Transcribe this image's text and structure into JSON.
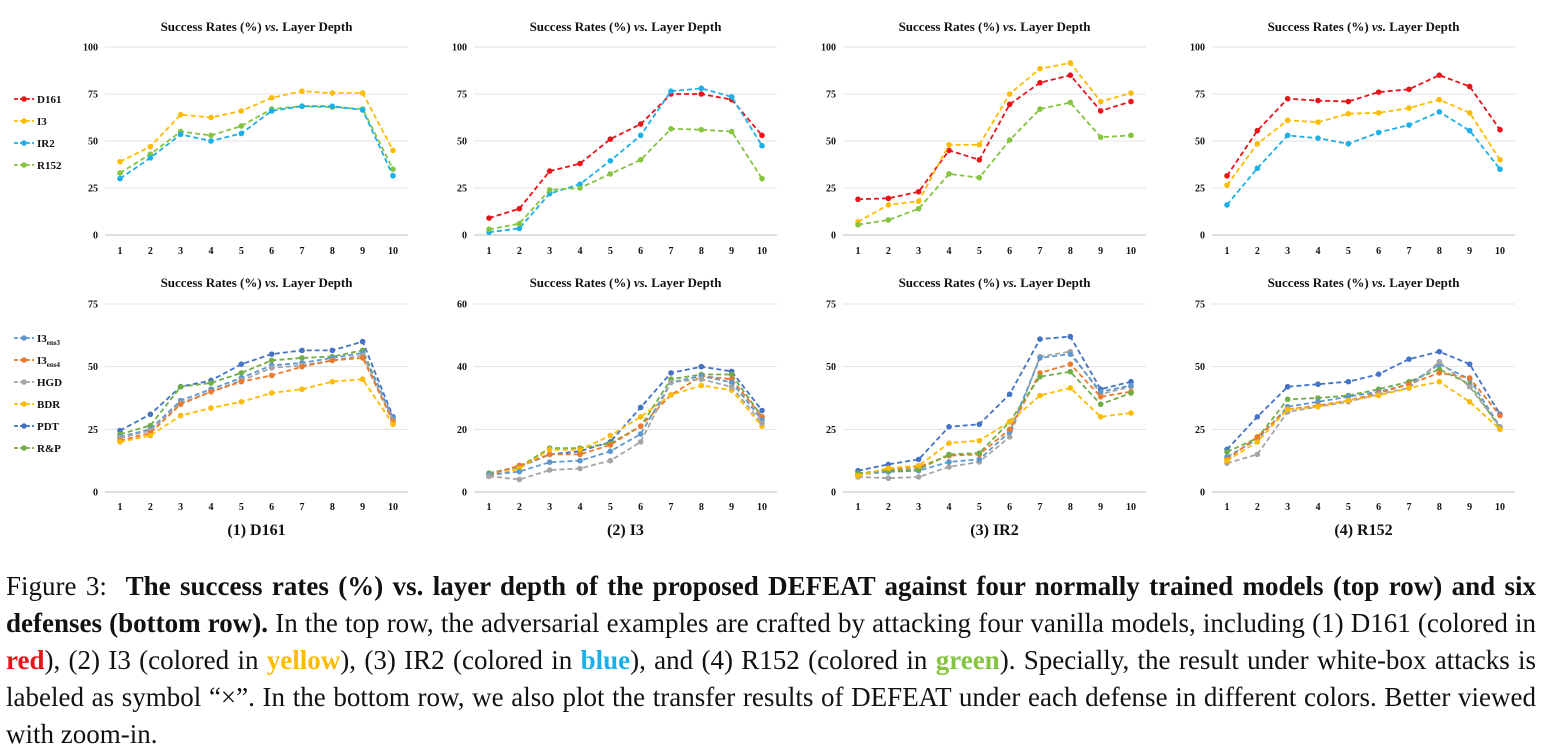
{
  "figure": {
    "panel_title_prefix": "Success Rates (%)",
    "panel_title_vs": "vs.",
    "panel_title_suffix": "Layer Depth",
    "x_ticks": [
      "1",
      "2",
      "3",
      "4",
      "5",
      "6",
      "7",
      "8",
      "9",
      "10"
    ],
    "subfigure_labels": [
      "(1) D161",
      "(2) I3",
      "(3) IR2",
      "(4) R152"
    ]
  },
  "legends": {
    "top": [
      {
        "label": "D161",
        "color": "#e8141a"
      },
      {
        "label": "I3",
        "color": "#fcbc04"
      },
      {
        "label": "IR2",
        "color": "#1cb0e8"
      },
      {
        "label": "R152",
        "color": "#84c441"
      }
    ],
    "bottom": [
      {
        "label": "I3",
        "sub": "ens3",
        "color": "#5f98cf"
      },
      {
        "label": "I3",
        "sub": "ens4",
        "color": "#ec7b30"
      },
      {
        "label": "HGD",
        "color": "#a5a5a5"
      },
      {
        "label": "BDR",
        "color": "#fcbc04"
      },
      {
        "label": "PDT",
        "color": "#4472c4"
      },
      {
        "label": "R&P",
        "color": "#70ad47"
      }
    ]
  },
  "chart_data": [
    {
      "type": "line",
      "row": "top",
      "title": "Success Rates (%) vs. Layer Depth",
      "ylim": [
        0,
        100
      ],
      "yticks": [
        0,
        25,
        50,
        75,
        100
      ],
      "x": [
        1,
        2,
        3,
        4,
        5,
        6,
        7,
        8,
        9,
        10
      ],
      "series": [
        {
          "name": "I3",
          "color": "#fcbc04",
          "values": [
            39,
            47,
            64,
            62.5,
            66,
            73,
            76.5,
            75.5,
            75.5,
            45
          ]
        },
        {
          "name": "R152",
          "color": "#84c441",
          "values": [
            33,
            43,
            55,
            53,
            58,
            67,
            68.5,
            68,
            67,
            35
          ]
        },
        {
          "name": "IR2",
          "color": "#1cb0e8",
          "values": [
            30,
            41,
            53.5,
            50,
            54,
            66,
            68.5,
            68.5,
            66.5,
            31.5
          ]
        }
      ]
    },
    {
      "type": "line",
      "row": "top",
      "title": "Success Rates (%) vs. Layer Depth",
      "ylim": [
        0,
        100
      ],
      "yticks": [
        0,
        25,
        50,
        75,
        100
      ],
      "x": [
        1,
        2,
        3,
        4,
        5,
        6,
        7,
        8,
        9,
        10
      ],
      "series": [
        {
          "name": "D161",
          "color": "#e8141a",
          "values": [
            9,
            14,
            34,
            38,
            51,
            59,
            75,
            75,
            72,
            53
          ]
        },
        {
          "name": "IR2",
          "color": "#1cb0e8",
          "values": [
            1.5,
            3.5,
            22,
            27,
            39.5,
            53,
            76.5,
            78,
            73.5,
            47.5
          ]
        },
        {
          "name": "R152",
          "color": "#84c441",
          "values": [
            3,
            6,
            24,
            25,
            32.5,
            40,
            56.5,
            56,
            55,
            30
          ]
        }
      ]
    },
    {
      "type": "line",
      "row": "top",
      "title": "Success Rates (%) vs. Layer Depth",
      "ylim": [
        0,
        100
      ],
      "yticks": [
        0,
        25,
        50,
        75,
        100
      ],
      "x": [
        1,
        2,
        3,
        4,
        5,
        6,
        7,
        8,
        9,
        10
      ],
      "series": [
        {
          "name": "D161",
          "color": "#e8141a",
          "values": [
            19,
            19.5,
            23,
            45,
            40,
            69.5,
            81,
            85,
            66,
            71
          ]
        },
        {
          "name": "I3",
          "color": "#fcbc04",
          "values": [
            7,
            16,
            18,
            48,
            48,
            75,
            88.5,
            91.5,
            71,
            75.5
          ]
        },
        {
          "name": "R152",
          "color": "#84c441",
          "values": [
            5.5,
            8,
            14,
            32.5,
            30.5,
            50.5,
            67,
            70.5,
            52,
            53
          ]
        }
      ]
    },
    {
      "type": "line",
      "row": "top",
      "title": "Success Rates (%) vs. Layer Depth",
      "ylim": [
        0,
        100
      ],
      "yticks": [
        0,
        25,
        50,
        75,
        100
      ],
      "x": [
        1,
        2,
        3,
        4,
        5,
        6,
        7,
        8,
        9,
        10
      ],
      "series": [
        {
          "name": "D161",
          "color": "#e8141a",
          "values": [
            31.5,
            55.5,
            72.5,
            71.5,
            71,
            76,
            77.5,
            85,
            79,
            56
          ]
        },
        {
          "name": "I3",
          "color": "#fcbc04",
          "values": [
            26.5,
            48.5,
            61,
            60,
            64.5,
            65,
            67.5,
            72,
            65,
            40
          ]
        },
        {
          "name": "IR2",
          "color": "#1cb0e8",
          "values": [
            16,
            35.5,
            53,
            51.5,
            48.5,
            54.5,
            58.5,
            65.5,
            55.5,
            35
          ]
        }
      ]
    },
    {
      "type": "line",
      "row": "bottom",
      "title": "Success Rates (%) vs. Layer Depth",
      "ylim": [
        0,
        75
      ],
      "yticks": [
        0,
        25,
        50,
        75
      ],
      "x": [
        1,
        2,
        3,
        4,
        5,
        6,
        7,
        8,
        9,
        10
      ],
      "series": [
        {
          "name": "PDT",
          "color": "#4472c4",
          "values": [
            24.5,
            31,
            42,
            44.5,
            51,
            55,
            56.5,
            56.5,
            60,
            30
          ]
        },
        {
          "name": "R&P",
          "color": "#70ad47",
          "values": [
            23,
            26.5,
            42,
            43.5,
            47.5,
            52.5,
            53.5,
            54,
            56.5,
            29
          ]
        },
        {
          "name": "I3ens3",
          "color": "#5f98cf",
          "values": [
            22,
            25,
            36.5,
            41,
            45.5,
            50.5,
            51.5,
            53.5,
            55.5,
            29.5
          ]
        },
        {
          "name": "HGD",
          "color": "#a5a5a5",
          "values": [
            21.5,
            24.5,
            35.5,
            40,
            44.5,
            49.5,
            50.5,
            52.5,
            54.5,
            28.5
          ]
        },
        {
          "name": "I3ens4",
          "color": "#ec7b30",
          "values": [
            20.5,
            23.5,
            35,
            40,
            44,
            46.5,
            50,
            52.5,
            53.5,
            28
          ]
        },
        {
          "name": "BDR",
          "color": "#fcbc04",
          "values": [
            20,
            22.5,
            30.5,
            33.5,
            36,
            39.5,
            41,
            44,
            45,
            27
          ]
        }
      ]
    },
    {
      "type": "line",
      "row": "bottom",
      "title": "Success Rates (%) vs. Layer Depth",
      "ylim": [
        0,
        60
      ],
      "yticks": [
        0,
        20,
        40,
        60
      ],
      "x": [
        1,
        2,
        3,
        4,
        5,
        6,
        7,
        8,
        9,
        10
      ],
      "series": [
        {
          "name": "PDT",
          "color": "#4472c4",
          "values": [
            6,
            8,
            12,
            13,
            16,
            27,
            38,
            40,
            38.5,
            26
          ]
        },
        {
          "name": "R&P",
          "color": "#70ad47",
          "values": [
            6,
            8,
            14,
            14,
            15.5,
            21,
            36,
            37.5,
            37.5,
            24
          ]
        },
        {
          "name": "I3ens4",
          "color": "#ec7b30",
          "values": [
            5.5,
            8.5,
            12,
            12,
            15,
            21,
            31,
            37,
            36,
            24
          ]
        },
        {
          "name": "BDR",
          "color": "#fcbc04",
          "values": [
            5,
            7.5,
            13.5,
            13.5,
            18,
            24,
            31,
            34,
            32.5,
            21
          ]
        },
        {
          "name": "I3ens3",
          "color": "#5f98cf",
          "values": [
            5.5,
            6.5,
            9.5,
            10,
            13,
            18.5,
            35,
            37,
            35,
            23
          ]
        },
        {
          "name": "HGD",
          "color": "#a5a5a5",
          "values": [
            5,
            4,
            7,
            7.5,
            10,
            16,
            35,
            36,
            33.5,
            22
          ]
        }
      ]
    },
    {
      "type": "line",
      "row": "bottom",
      "title": "Success Rates (%) vs. Layer Depth",
      "ylim": [
        0,
        75
      ],
      "yticks": [
        0,
        25,
        50,
        75
      ],
      "x": [
        1,
        2,
        3,
        4,
        5,
        6,
        7,
        8,
        9,
        10
      ],
      "series": [
        {
          "name": "PDT",
          "color": "#4472c4",
          "values": [
            8.5,
            11,
            13,
            26,
            27,
            39,
            61,
            62,
            41,
            44
          ]
        },
        {
          "name": "HGD",
          "color": "#a5a5a5",
          "values": [
            6,
            5.5,
            6,
            10,
            12,
            22,
            54,
            56,
            39,
            42
          ]
        },
        {
          "name": "I3ens3",
          "color": "#5f98cf",
          "values": [
            7,
            8,
            8.5,
            12,
            13,
            24,
            53.5,
            55,
            40,
            42.5
          ]
        },
        {
          "name": "I3ens4",
          "color": "#ec7b30",
          "values": [
            7,
            9,
            10,
            14.5,
            15,
            25,
            47.5,
            51,
            38,
            40
          ]
        },
        {
          "name": "R&P",
          "color": "#70ad47",
          "values": [
            7.5,
            8.5,
            9,
            15,
            15.5,
            28,
            46,
            48,
            35,
            39.5
          ]
        },
        {
          "name": "BDR",
          "color": "#fcbc04",
          "values": [
            6.5,
            9.5,
            10.5,
            19.5,
            20.5,
            28,
            38.5,
            41.5,
            30,
            31.5
          ]
        }
      ]
    },
    {
      "type": "line",
      "row": "bottom",
      "title": "Success Rates (%) vs. Layer Depth",
      "ylim": [
        0,
        75
      ],
      "yticks": [
        0,
        25,
        50,
        75
      ],
      "x": [
        1,
        2,
        3,
        4,
        5,
        6,
        7,
        8,
        9,
        10
      ],
      "series": [
        {
          "name": "PDT",
          "color": "#4472c4",
          "values": [
            17,
            30,
            42,
            43,
            44,
            47,
            53,
            56,
            51,
            31
          ]
        },
        {
          "name": "R&P",
          "color": "#70ad47",
          "values": [
            16,
            21.5,
            37,
            37.5,
            38.5,
            41,
            44,
            49,
            43,
            25.5
          ]
        },
        {
          "name": "I3ens3",
          "color": "#5f98cf",
          "values": [
            14,
            21,
            34,
            36,
            38,
            40,
            43,
            51,
            45,
            26
          ]
        },
        {
          "name": "I3ens4",
          "color": "#ec7b30",
          "values": [
            13,
            22,
            33,
            34.5,
            36.5,
            39.5,
            43,
            47.5,
            45.5,
            30.5
          ]
        },
        {
          "name": "HGD",
          "color": "#a5a5a5",
          "values": [
            11.5,
            15,
            32,
            34,
            36,
            39,
            41.5,
            52,
            42,
            26
          ]
        },
        {
          "name": "BDR",
          "color": "#fcbc04",
          "values": [
            12.5,
            20,
            33,
            34,
            36.5,
            38.5,
            41.5,
            44,
            36,
            25
          ]
        }
      ]
    }
  ],
  "caption": {
    "figure_label": "Figure 3:",
    "bold_text": "The success rates (%) vs. layer depth of the proposed DEFEAT against four normally trained models (top row) and six defenses (bottom row).",
    "text_1": "In the top row, the adversarial examples are crafted by attacking four vanilla models, including (1) D161 (colored in",
    "red_word": "red",
    "red_color": "#e8141a",
    "text_2": "), (2) I3 (colored in",
    "yellow_word": "yellow",
    "yellow_color": "#fcbc04",
    "text_3": "), (3) IR2 (colored in",
    "blue_word": "blue",
    "blue_color": "#1cb0e8",
    "text_4": "), and (4) R152 (colored in",
    "green_word": "green",
    "green_color": "#84c441",
    "text_5": "). Specially, the result under white-box attacks is labeled as symbol “×”. In the bottom row, we also plot the transfer results of DEFEAT under each defense in different colors. Better viewed with zoom-in."
  }
}
